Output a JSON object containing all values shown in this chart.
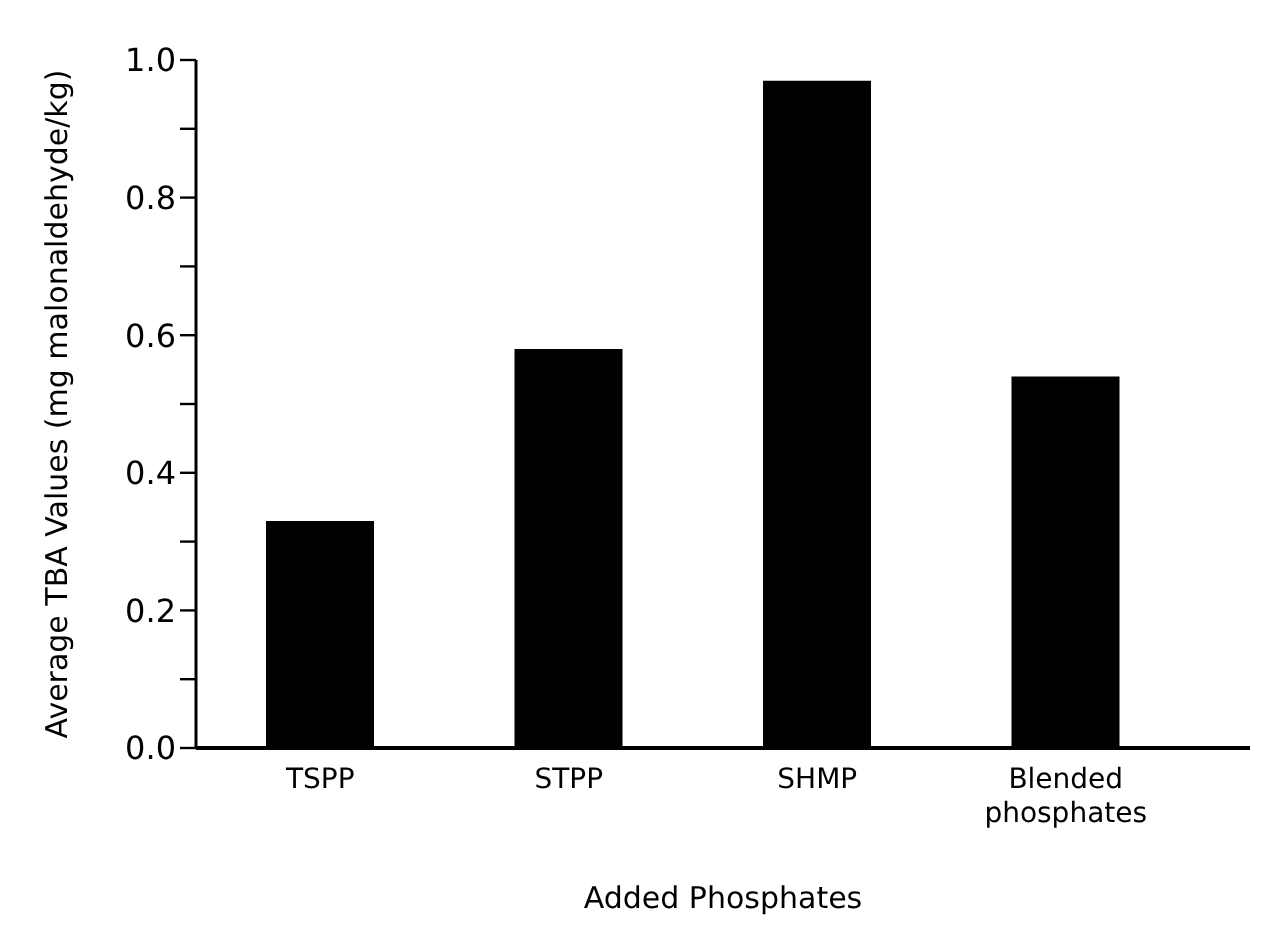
{
  "chart_data": {
    "type": "bar",
    "xlabel": "Added Phosphates",
    "ylabel": "Average TBA Values  (mg malonaldehyde/kg)",
    "categories": [
      "TSPP",
      "STPP",
      "SHMP",
      "Blended\nphosphates"
    ],
    "values": [
      0.33,
      0.58,
      0.97,
      0.54
    ],
    "color": "#000000",
    "ylim": [
      0,
      1.0
    ],
    "yticks": [
      {
        "value": 0,
        "label": "0.0"
      },
      {
        "value": 0.1,
        "label": null
      },
      {
        "value": 0.2,
        "label": "0.2"
      },
      {
        "value": 0.3,
        "label": null
      },
      {
        "value": 0.4,
        "label": "0.4"
      },
      {
        "value": 0.5,
        "label": null
      },
      {
        "value": 0.6,
        "label": "0.6"
      },
      {
        "value": 0.7,
        "label": null
      },
      {
        "value": 0.8,
        "label": "0.8"
      },
      {
        "value": 0.9,
        "label": null
      },
      {
        "value": 1.0,
        "label": "1.0"
      }
    ],
    "grid": false,
    "legend": false
  }
}
